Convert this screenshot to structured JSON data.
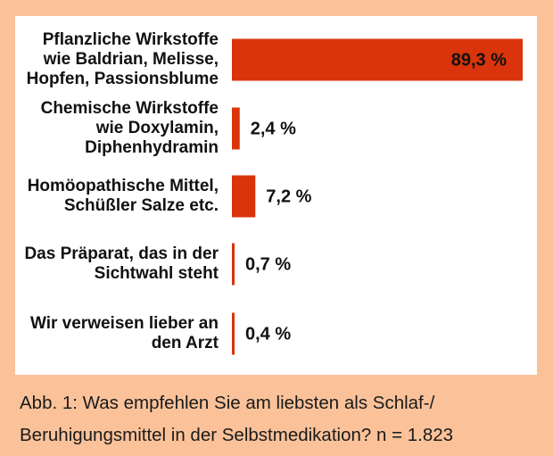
{
  "colors": {
    "background": "#fbc29a",
    "panel": "#ffffff",
    "bar": "#d9340b",
    "value_inside_text": "#111111",
    "text": "#111111"
  },
  "chart_data": {
    "type": "bar",
    "orientation": "horizontal",
    "title": "",
    "xlabel": "",
    "ylabel": "",
    "xlim": [
      0,
      89.3
    ],
    "grid": false,
    "legend": "none",
    "unit": "%",
    "categories": [
      [
        "Pflanzliche Wirkstoffe",
        "wie Baldrian, Melisse,",
        "Hopfen, Passionsblume"
      ],
      [
        "Chemische Wirkstoffe",
        "wie Doxylamin,",
        "Diphenhydramin"
      ],
      [
        "Homöopathische Mittel,",
        "Schüßler Salze etc."
      ],
      [
        "Das Präparat, das in der",
        "Sichtwahl steht"
      ],
      [
        "Wir verweisen lieber an",
        "den Arzt"
      ]
    ],
    "values": [
      89.3,
      2.4,
      7.2,
      0.7,
      0.4
    ],
    "value_labels": [
      "89,3 %",
      "2,4 %",
      "7,2 %",
      "0,7 %",
      "0,4 %"
    ]
  },
  "caption": {
    "line1": "Abb. 1: Was empfehlen Sie am liebsten als Schlaf-/",
    "line2": "Beruhigungsmittel in der Selbstmedikation? n = 1.823"
  }
}
